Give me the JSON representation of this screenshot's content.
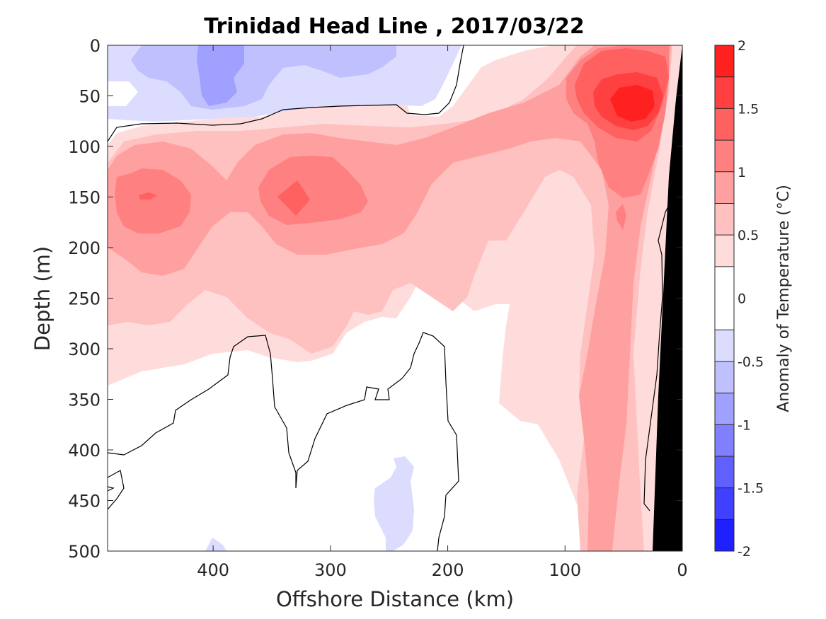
{
  "chart_data": {
    "type": "contour",
    "title": "Trinidad Head Line , 2017/03/22",
    "xlabel": "Offshore Distance (km)",
    "ylabel": "Depth (m)",
    "xlim": [
      490,
      0
    ],
    "ylim": [
      0,
      500
    ],
    "y_reversed": true,
    "x_reversed": true,
    "xticks": [
      "400",
      "300",
      "200",
      "100",
      "0"
    ],
    "yticks": [
      "0",
      "50",
      "100",
      "150",
      "200",
      "250",
      "300",
      "350",
      "400",
      "450",
      "500"
    ],
    "colorbar": {
      "label": "Anomaly of Temperature (°C)",
      "ticks": [
        "2",
        "1.5",
        "1",
        "0.5",
        "0",
        "-0.5",
        "-1",
        "-1.5",
        "-2"
      ],
      "range": [
        -2,
        2
      ],
      "levels": [
        -2,
        -1.75,
        -1.5,
        -1.25,
        -1,
        -0.75,
        -0.5,
        -0.25,
        0.25,
        0.5,
        0.75,
        1,
        1.25,
        1.5,
        1.75,
        2
      ],
      "colors": [
        "#0000ff",
        "#2020ff",
        "#4040ff",
        "#6060ff",
        "#8080ff",
        "#a0a0ff",
        "#c0c0ff",
        "#dcdcff",
        "#ffffff",
        "#ffdcdc",
        "#ffc0c0",
        "#ffa0a0",
        "#ff8080",
        "#ff6060",
        "#ff4040",
        "#ff2020",
        "#ff0000"
      ]
    },
    "features": [
      {
        "name": "surface cold anomaly",
        "x_range": [
          490,
          180
        ],
        "depth_range": [
          0,
          70
        ],
        "peak_value": -0.9
      },
      {
        "name": "warm core A",
        "center_x": 460,
        "center_depth": 150,
        "peak_value": 1.1
      },
      {
        "name": "warm core B",
        "center_x": 335,
        "center_depth": 150,
        "peak_value": 1.0
      },
      {
        "name": "nearshore warm core",
        "center_x": 40,
        "center_depth": 70,
        "peak_value": 1.9
      },
      {
        "name": "deep cold patch",
        "center_x": 240,
        "center_depth": 455,
        "peak_value": -0.3
      }
    ],
    "bathymetry": "black wedge near 0–25 km",
    "colors": {
      "bathymetry": "#000000",
      "contour_line": "#000000"
    }
  }
}
